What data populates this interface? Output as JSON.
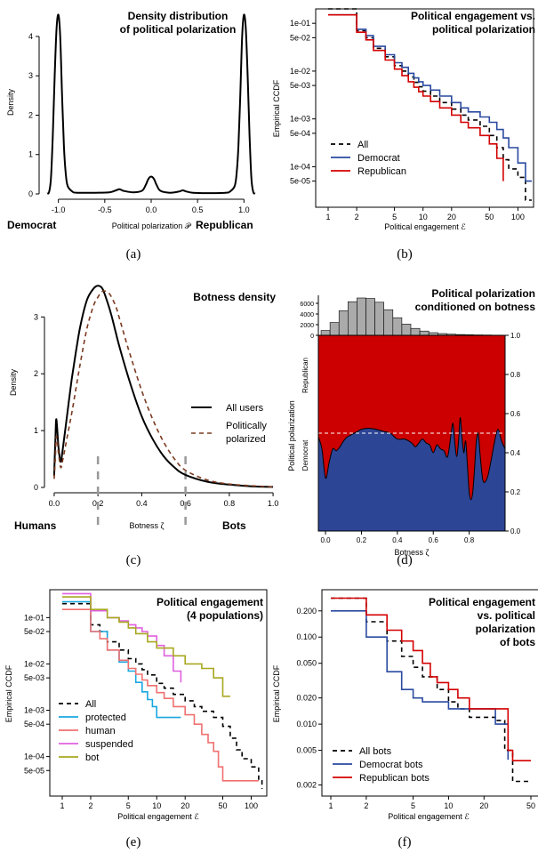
{
  "chart_data": [
    {
      "id": "a",
      "type": "line",
      "caption": "(a)",
      "title": [
        "Density distribution",
        "of political polarization"
      ],
      "xlabel": "Political polarization 𝒫",
      "ylabel": "Density",
      "xlim": [
        -1.15,
        1.15
      ],
      "ylim": [
        0,
        4.7
      ],
      "xticks": [
        "-1.0",
        "-0.5",
        "0.0",
        "0.5",
        "1.0"
      ],
      "yticks": [
        "0",
        "1",
        "2",
        "3",
        "4"
      ],
      "left_label": "Democrat",
      "right_label": "Republican",
      "series": [
        {
          "color": "#000000",
          "x": [
            -1.12,
            -1.1,
            -1.08,
            -1.06,
            -1.04,
            -1.02,
            -1.0,
            -0.98,
            -0.96,
            -0.94,
            -0.92,
            -0.9,
            -0.85,
            -0.8,
            -0.6,
            -0.45,
            -0.38,
            -0.34,
            -0.3,
            -0.2,
            -0.1,
            -0.06,
            -0.03,
            0.0,
            0.03,
            0.06,
            0.1,
            0.2,
            0.3,
            0.34,
            0.38,
            0.45,
            0.6,
            0.8,
            0.85,
            0.9,
            0.92,
            0.94,
            0.96,
            0.98,
            1.0,
            1.02,
            1.04,
            1.06,
            1.08,
            1.1,
            1.12
          ],
          "y": [
            0.01,
            0.05,
            0.4,
            1.5,
            3.0,
            4.2,
            4.55,
            4.0,
            2.5,
            1.2,
            0.5,
            0.2,
            0.06,
            0.03,
            0.03,
            0.04,
            0.09,
            0.12,
            0.08,
            0.04,
            0.08,
            0.22,
            0.38,
            0.44,
            0.38,
            0.22,
            0.08,
            0.03,
            0.06,
            0.09,
            0.06,
            0.03,
            0.02,
            0.03,
            0.06,
            0.2,
            0.5,
            1.2,
            2.5,
            4.0,
            4.55,
            4.2,
            3.0,
            1.5,
            0.4,
            0.05,
            0.01
          ]
        }
      ]
    },
    {
      "id": "b",
      "type": "line",
      "caption": "(b)",
      "title": [
        "Political engagement vs.",
        "political polarization"
      ],
      "xlabel": "Political engagement ℰ",
      "ylabel": "Empirical CCDF",
      "scale": "log-log",
      "xlim": [
        1,
        140
      ],
      "ylim": [
        2e-05,
        0.2
      ],
      "xticks": [
        "1",
        "2",
        "5",
        "10",
        "20",
        "50",
        "100"
      ],
      "yticks": [
        "1e-01",
        "5e-02",
        "1e-02",
        "5e-03",
        "1e-03",
        "5e-04",
        "1e-04",
        "5e-05"
      ],
      "legend": {
        "position": "bottom-left",
        "entries": [
          "All",
          "Democrat",
          "Republican"
        ]
      },
      "series": [
        {
          "name": "All",
          "color": "#000000",
          "dash": "5,4",
          "x": [
            1,
            2,
            2.5,
            3,
            4,
            5,
            6,
            7,
            8,
            9,
            10,
            12,
            15,
            20,
            25,
            30,
            40,
            50,
            60,
            70,
            80,
            100,
            120,
            140
          ],
          "y": [
            0.2,
            0.07,
            0.05,
            0.03,
            0.02,
            0.013,
            0.01,
            0.0075,
            0.0058,
            0.0047,
            0.0038,
            0.003,
            0.0022,
            0.0016,
            0.0012,
            0.00095,
            0.0007,
            0.00045,
            0.00025,
            0.00014,
            9e-05,
            6e-05,
            2e-05,
            2e-05
          ]
        },
        {
          "name": "Democrat",
          "color": "#2a4aa0",
          "x": [
            1,
            2,
            2.5,
            3,
            4,
            5,
            6,
            7,
            8,
            9,
            10,
            12,
            15,
            20,
            25,
            30,
            40,
            50,
            60,
            70,
            80,
            100,
            120,
            140
          ],
          "y": [
            0.15,
            0.075,
            0.055,
            0.033,
            0.022,
            0.015,
            0.012,
            0.009,
            0.0072,
            0.006,
            0.005,
            0.004,
            0.003,
            0.0022,
            0.0017,
            0.0014,
            0.0011,
            0.00085,
            0.0006,
            0.0004,
            0.00025,
            0.00012,
            5e-05,
            5e-05
          ]
        },
        {
          "name": "Republican",
          "color": "#d40000",
          "x": [
            1,
            2,
            2.5,
            3,
            4,
            5,
            6,
            7,
            8,
            9,
            10,
            12,
            15,
            20,
            25,
            30,
            40,
            50,
            60,
            70
          ],
          "y": [
            0.15,
            0.065,
            0.045,
            0.027,
            0.017,
            0.011,
            0.008,
            0.006,
            0.0046,
            0.0037,
            0.003,
            0.0023,
            0.0017,
            0.0012,
            0.00085,
            0.00065,
            0.00045,
            0.0003,
            0.00015,
            5e-05
          ]
        }
      ]
    },
    {
      "id": "c",
      "type": "line",
      "caption": "(c)",
      "title": [
        "Botness density"
      ],
      "xlabel": "Botness ζ",
      "ylabel": "Density",
      "xlim": [
        -0.02,
        1.02
      ],
      "ylim": [
        0,
        3.6
      ],
      "xticks": [
        "0.0",
        "0.2",
        "0.4",
        "0.6",
        "0.8",
        "1.0"
      ],
      "yticks": [
        "0",
        "1",
        "2",
        "3"
      ],
      "left_label": "Humans",
      "right_label": "Bots",
      "thresholds": [
        0.2,
        0.6
      ],
      "legend": {
        "position": "right",
        "entries": [
          "All users",
          "Politically polarized"
        ]
      },
      "series": [
        {
          "name": "All users",
          "color": "#000000",
          "x": [
            0,
            0.005,
            0.01,
            0.02,
            0.03,
            0.04,
            0.06,
            0.08,
            0.1,
            0.12,
            0.15,
            0.18,
            0.2,
            0.22,
            0.24,
            0.26,
            0.28,
            0.3,
            0.35,
            0.4,
            0.45,
            0.5,
            0.55,
            0.6,
            0.7,
            0.8,
            0.9,
            1.0
          ],
          "y": [
            0.2,
            0.8,
            1.2,
            0.7,
            0.45,
            0.7,
            1.3,
            1.9,
            2.4,
            2.85,
            3.3,
            3.5,
            3.55,
            3.5,
            3.3,
            3.05,
            2.75,
            2.45,
            1.8,
            1.25,
            0.85,
            0.55,
            0.35,
            0.22,
            0.1,
            0.05,
            0.02,
            0.01
          ]
        },
        {
          "name": "Politically polarized",
          "color": "#7a3a20",
          "dash": "5,4",
          "x": [
            0,
            0.005,
            0.01,
            0.02,
            0.03,
            0.04,
            0.06,
            0.08,
            0.1,
            0.12,
            0.15,
            0.18,
            0.2,
            0.22,
            0.25,
            0.28,
            0.3,
            0.33,
            0.35,
            0.4,
            0.45,
            0.5,
            0.55,
            0.6,
            0.7,
            0.8,
            0.9,
            1.0
          ],
          "y": [
            0.15,
            0.5,
            0.9,
            0.6,
            0.35,
            0.5,
            0.9,
            1.3,
            1.75,
            2.2,
            2.8,
            3.2,
            3.35,
            3.45,
            3.42,
            3.2,
            2.95,
            2.55,
            2.3,
            1.7,
            1.2,
            0.8,
            0.5,
            0.3,
            0.13,
            0.06,
            0.03,
            0.01
          ]
        }
      ]
    },
    {
      "id": "d",
      "type": "area",
      "caption": "(d)",
      "title": [
        "Political polarization",
        "conditioned on botness"
      ],
      "xlabel": "Botness ζ",
      "ylabel": "Political polarization",
      "top_label": "Republican",
      "bottom_label": "Democrat",
      "xlim": [
        -0.04,
        1.0
      ],
      "xticks": [
        "0.0",
        "0.2",
        "0.4",
        "0.6",
        "0.8"
      ],
      "yticks": [
        "0.0",
        "0.2",
        "0.4",
        "0.6",
        "0.8",
        "1.0"
      ],
      "hist_yticks": [
        "0",
        "2000",
        "4000",
        "6000"
      ],
      "hist_ylim": [
        0,
        7500
      ],
      "hist": {
        "x": [
          0.0,
          0.05,
          0.1,
          0.15,
          0.2,
          0.25,
          0.3,
          0.35,
          0.4,
          0.45,
          0.5,
          0.55,
          0.6,
          0.65,
          0.7,
          0.75,
          0.8,
          0.85,
          0.9,
          0.95
        ],
        "values": [
          900,
          2400,
          4600,
          6300,
          7000,
          6900,
          6200,
          4800,
          3300,
          2100,
          1300,
          800,
          500,
          330,
          220,
          150,
          110,
          80,
          60,
          40
        ]
      },
      "colors": {
        "top": "#cc0000",
        "bottom": "#2d4595"
      },
      "reference_line": 0.5,
      "democrat_share": {
        "x": [
          -0.04,
          -0.02,
          0.0,
          0.02,
          0.04,
          0.06,
          0.08,
          0.1,
          0.12,
          0.14,
          0.16,
          0.18,
          0.2,
          0.24,
          0.28,
          0.32,
          0.36,
          0.4,
          0.44,
          0.48,
          0.5,
          0.52,
          0.54,
          0.56,
          0.58,
          0.6,
          0.62,
          0.64,
          0.66,
          0.68,
          0.7,
          0.71,
          0.72,
          0.73,
          0.74,
          0.75,
          0.76,
          0.77,
          0.78,
          0.79,
          0.8,
          0.81,
          0.82,
          0.83,
          0.84,
          0.85,
          0.86,
          0.87,
          0.88,
          0.9,
          0.92,
          0.94,
          0.96,
          0.98,
          1.0
        ],
        "y": [
          0.48,
          0.42,
          0.27,
          0.35,
          0.42,
          0.41,
          0.43,
          0.46,
          0.48,
          0.49,
          0.5,
          0.51,
          0.52,
          0.525,
          0.52,
          0.51,
          0.5,
          0.47,
          0.47,
          0.45,
          0.43,
          0.45,
          0.47,
          0.45,
          0.44,
          0.4,
          0.44,
          0.42,
          0.41,
          0.38,
          0.5,
          0.55,
          0.45,
          0.38,
          0.45,
          0.58,
          0.48,
          0.4,
          0.46,
          0.34,
          0.2,
          0.16,
          0.2,
          0.32,
          0.46,
          0.5,
          0.4,
          0.3,
          0.25,
          0.27,
          0.35,
          0.45,
          0.52,
          0.46,
          0.42
        ]
      }
    },
    {
      "id": "e",
      "type": "line",
      "caption": "(e)",
      "title": [
        "Political engagement",
        "(4 populations)"
      ],
      "xlabel": "Political engagement ℰ",
      "ylabel": "Empirical CCDF",
      "scale": "log-log",
      "xlim": [
        1,
        140
      ],
      "ylim": [
        2e-05,
        0.4
      ],
      "xticks": [
        "1",
        "2",
        "5",
        "10",
        "20",
        "50",
        "100"
      ],
      "yticks": [
        "1e-01",
        "5e-02",
        "1e-02",
        "5e-03",
        "1e-03",
        "5e-04",
        "1e-04",
        "5e-05"
      ],
      "legend": {
        "position": "bottom-left",
        "entries": [
          "All",
          "protected",
          "human",
          "suspended",
          "bot"
        ]
      },
      "series": [
        {
          "name": "All",
          "color": "#000000",
          "dash": "5,4",
          "x": [
            1,
            2,
            2.5,
            3,
            4,
            5,
            6,
            7,
            8,
            10,
            12,
            15,
            20,
            25,
            30,
            40,
            50,
            60,
            70,
            80,
            100,
            120,
            130
          ],
          "y": [
            0.2,
            0.07,
            0.05,
            0.03,
            0.02,
            0.013,
            0.01,
            0.0075,
            0.0058,
            0.0038,
            0.003,
            0.0022,
            0.0016,
            0.0012,
            0.00095,
            0.0007,
            0.00045,
            0.00025,
            0.00014,
            9e-05,
            6e-05,
            3e-05,
            2e-05
          ]
        },
        {
          "name": "protected",
          "color": "#1aa7e0",
          "x": [
            1,
            2,
            3,
            4,
            5,
            6,
            7,
            8,
            9,
            10,
            12,
            15,
            18
          ],
          "y": [
            0.22,
            0.05,
            0.02,
            0.011,
            0.007,
            0.004,
            0.0025,
            0.0017,
            0.0012,
            0.0007,
            0.0007,
            0.0007,
            0.0007
          ]
        },
        {
          "name": "human",
          "color": "#f07070",
          "x": [
            1,
            2,
            2.5,
            3,
            4,
            5,
            6,
            7,
            8,
            10,
            12,
            15,
            20,
            25,
            30,
            35,
            40,
            45,
            50,
            60,
            80,
            100,
            120
          ],
          "y": [
            0.15,
            0.05,
            0.035,
            0.02,
            0.012,
            0.008,
            0.006,
            0.0045,
            0.0034,
            0.0024,
            0.0018,
            0.0012,
            0.0008,
            0.0005,
            0.0003,
            0.0002,
            0.00013,
            6e-05,
            3e-05,
            3e-05,
            3e-05,
            3e-05,
            3e-05
          ]
        },
        {
          "name": "suspended",
          "color": "#e060e0",
          "x": [
            1,
            2,
            3,
            4,
            5,
            6,
            7,
            8,
            10,
            12,
            15,
            18
          ],
          "y": [
            0.33,
            0.14,
            0.1,
            0.085,
            0.07,
            0.06,
            0.05,
            0.04,
            0.025,
            0.015,
            0.007,
            0.004
          ]
        },
        {
          "name": "bot",
          "color": "#a8a820",
          "x": [
            1,
            2,
            3,
            4,
            5,
            6,
            8,
            10,
            15,
            20,
            30,
            40,
            50,
            60
          ],
          "y": [
            0.28,
            0.15,
            0.1,
            0.08,
            0.06,
            0.045,
            0.03,
            0.022,
            0.015,
            0.01,
            0.008,
            0.005,
            0.002,
            0.002
          ]
        }
      ]
    },
    {
      "id": "f",
      "type": "line",
      "caption": "(f)",
      "title": [
        "Political engagement",
        "vs. political",
        "polarization",
        "of bots"
      ],
      "xlabel": "Political engagement ℰ",
      "ylabel": "Empirical CCDF",
      "scale": "log-log",
      "xlim": [
        1,
        50
      ],
      "ylim": [
        0.0018,
        0.35
      ],
      "xticks": [
        "1",
        "2",
        "5",
        "10",
        "20",
        "50"
      ],
      "yticks": [
        "0.200",
        "0.100",
        "0.050",
        "0.020",
        "0.010",
        "0.005",
        "0.002"
      ],
      "legend": {
        "position": "bottom-left",
        "entries": [
          "All bots",
          "Democrat bots",
          "Republican bots"
        ]
      },
      "series": [
        {
          "name": "All bots",
          "color": "#000000",
          "dash": "5,4",
          "x": [
            1,
            2,
            3,
            4,
            5,
            6,
            8,
            10,
            12,
            15,
            20,
            25,
            30,
            35,
            40,
            50
          ],
          "y": [
            0.28,
            0.15,
            0.09,
            0.06,
            0.045,
            0.035,
            0.025,
            0.018,
            0.015,
            0.012,
            0.012,
            0.011,
            0.005,
            0.0022,
            0.0022,
            0.0022
          ]
        },
        {
          "name": "Democrat bots",
          "color": "#2a4aa0",
          "x": [
            1,
            2,
            3,
            4,
            5,
            6,
            8,
            10,
            15,
            20,
            25,
            30,
            32
          ],
          "y": [
            0.2,
            0.1,
            0.04,
            0.025,
            0.02,
            0.018,
            0.018,
            0.015,
            0.015,
            0.015,
            0.01,
            0.01,
            0.0039
          ]
        },
        {
          "name": "Republican bots",
          "color": "#d40000",
          "x": [
            1,
            2,
            3,
            4,
            5,
            6,
            7,
            8,
            10,
            12,
            15,
            20,
            30,
            32,
            35,
            50
          ],
          "y": [
            0.28,
            0.18,
            0.12,
            0.09,
            0.07,
            0.05,
            0.035,
            0.03,
            0.025,
            0.02,
            0.015,
            0.015,
            0.015,
            0.005,
            0.0038,
            0.0038
          ]
        }
      ]
    }
  ]
}
